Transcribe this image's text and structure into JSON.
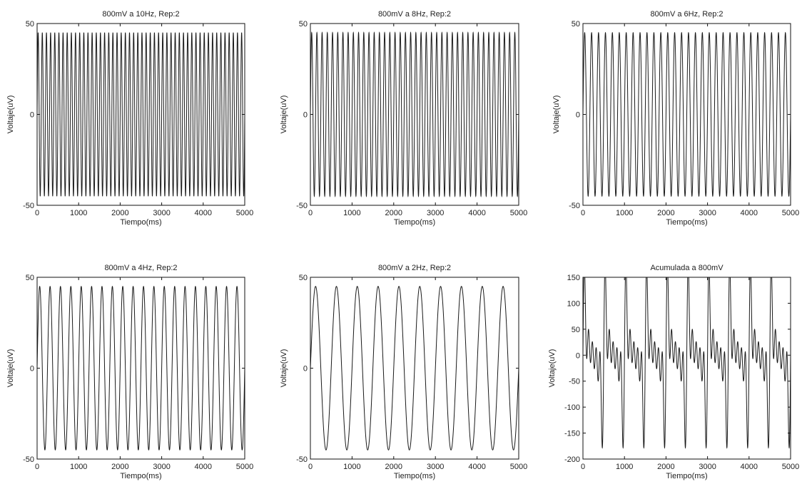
{
  "chart_data": [
    {
      "type": "line",
      "title": "800mV a 10Hz, Rep:2",
      "xlabel": "Tiempo(ms)",
      "ylabel": "Voltaje(uV)",
      "xlim": [
        0,
        5000
      ],
      "ylim": [
        -50,
        50
      ],
      "xticks": [
        "0",
        "1000",
        "2000",
        "3000",
        "4000",
        "5000"
      ],
      "yticks": [
        "-50",
        "0",
        "50"
      ],
      "series": [
        {
          "frequency_hz": 10,
          "amplitude_uv": 45
        }
      ]
    },
    {
      "type": "line",
      "title": "800mV a 8Hz, Rep:2",
      "xlabel": "Tiempo(ms)",
      "ylabel": "Voltaje(uV)",
      "xlim": [
        0,
        5000
      ],
      "ylim": [
        -50,
        50
      ],
      "xticks": [
        "0",
        "1000",
        "2000",
        "3000",
        "4000",
        "5000"
      ],
      "yticks": [
        "-50",
        "0",
        "50"
      ],
      "series": [
        {
          "frequency_hz": 8,
          "amplitude_uv": 45
        }
      ]
    },
    {
      "type": "line",
      "title": "800mV a 6Hz, Rep:2",
      "xlabel": "Tiempo(ms)",
      "ylabel": "Voltaje(uV)",
      "xlim": [
        0,
        5000
      ],
      "ylim": [
        -50,
        50
      ],
      "xticks": [
        "0",
        "1000",
        "2000",
        "3000",
        "4000",
        "5000"
      ],
      "yticks": [
        "-50",
        "0",
        "50"
      ],
      "series": [
        {
          "frequency_hz": 6,
          "amplitude_uv": 45
        }
      ]
    },
    {
      "type": "line",
      "title": "800mV a 4Hz, Rep:2",
      "xlabel": "Tiempo(ms)",
      "ylabel": "Voltaje(uV)",
      "xlim": [
        0,
        5000
      ],
      "ylim": [
        -50,
        50
      ],
      "xticks": [
        "0",
        "1000",
        "2000",
        "3000",
        "4000",
        "5000"
      ],
      "yticks": [
        "-50",
        "0",
        "50"
      ],
      "series": [
        {
          "frequency_hz": 4,
          "amplitude_uv": 45
        }
      ]
    },
    {
      "type": "line",
      "title": "800mV a 2Hz, Rep:2",
      "xlabel": "Tiempo(ms)",
      "ylabel": "Voltaje(uV)",
      "xlim": [
        0,
        5000
      ],
      "ylim": [
        -50,
        50
      ],
      "xticks": [
        "0",
        "1000",
        "2000",
        "3000",
        "4000",
        "5000"
      ],
      "yticks": [
        "-50",
        "0",
        "50"
      ],
      "series": [
        {
          "frequency_hz": 2,
          "amplitude_uv": 45
        }
      ]
    },
    {
      "type": "line",
      "title": "Acumulada a 800mV",
      "xlabel": "Tiempo(ms)",
      "ylabel": "Voltaje(uV)",
      "xlim": [
        0,
        5000
      ],
      "ylim": [
        -200,
        150
      ],
      "xticks": [
        "0",
        "1000",
        "2000",
        "3000",
        "4000",
        "5000"
      ],
      "yticks": [
        "-200",
        "-150",
        "-100",
        "-50",
        "0",
        "50",
        "100",
        "150"
      ],
      "series": [
        {
          "components_hz": [
            10,
            8,
            6,
            4,
            2
          ],
          "component_amplitude_uv": 45
        }
      ]
    }
  ]
}
